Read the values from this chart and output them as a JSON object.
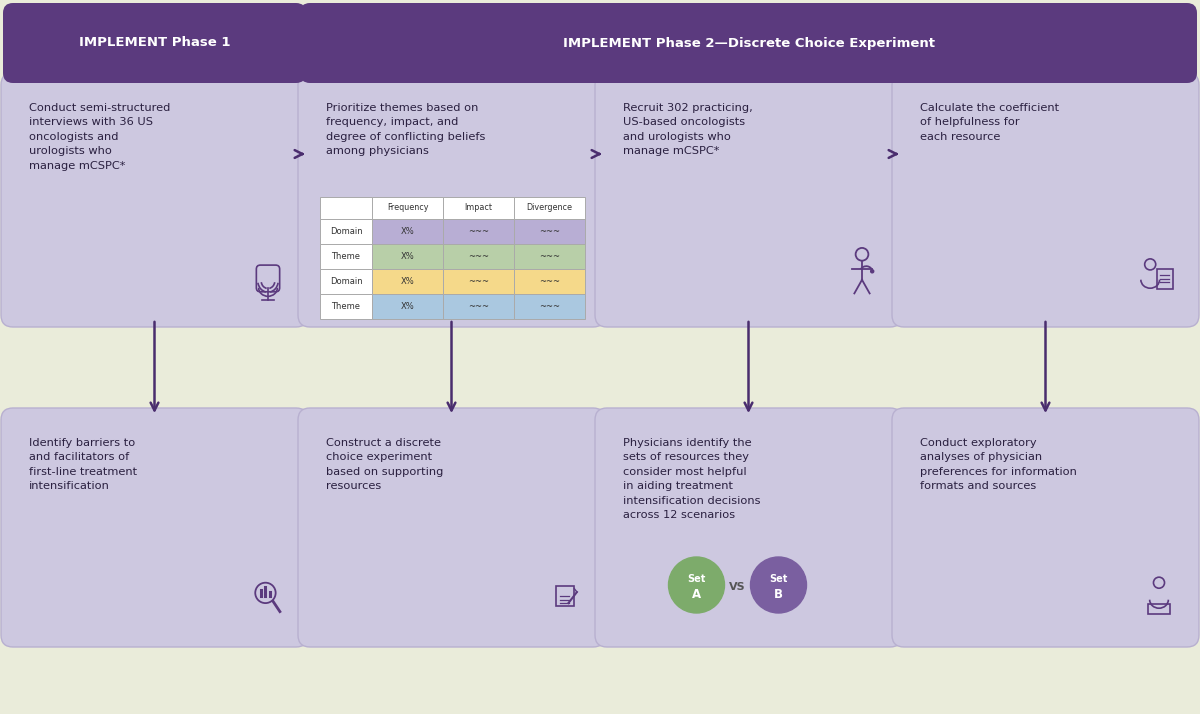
{
  "bg_color": "#eaecda",
  "header_bg": "#5b3a7e",
  "header_text_color": "#ffffff",
  "header1_text": "IMPLEMENT Phase 1",
  "header2_text": "IMPLEMENT Phase 2—Discrete Choice Experiment",
  "box_fill": "#cdc8e0",
  "box_edge": "#b8b0d0",
  "arrow_color": "#4a2d6e",
  "icon_color": "#5b3a7e",
  "text_color": "#2a2040",
  "table_colors": [
    "#b8aed4",
    "#b8cfa8",
    "#f5d98a",
    "#aac8e0"
  ],
  "set_a_color": "#7dab6b",
  "set_b_color": "#7a5fa0",
  "col_texts_top": [
    "Conduct semi-structured\ninterviews with 36 US\noncologists and\nurologists who\nmanage mCSPC*",
    "Prioritize themes based on\nfrequency, impact, and\ndegree of conflicting beliefs\namong physicians",
    "Recruit 302 practicing,\nUS-based oncologists\nand urologists who\nmanage mCSPC*",
    "Calculate the coefficient\nof helpfulness for\neach resource"
  ],
  "col_texts_bot": [
    "Identify barriers to\nand facilitators of\nfirst-line treatment\nintensification",
    "Construct a discrete\nchoice experiment\nbased on supporting\nresources",
    "Physicians identify the\nsets of resources they\nconsider most helpful\nin aiding treatment\nintensification decisions\nacross 12 scenarios",
    "Conduct exploratory\nanalyses of physician\npreferences for information\nformats and sources"
  ]
}
